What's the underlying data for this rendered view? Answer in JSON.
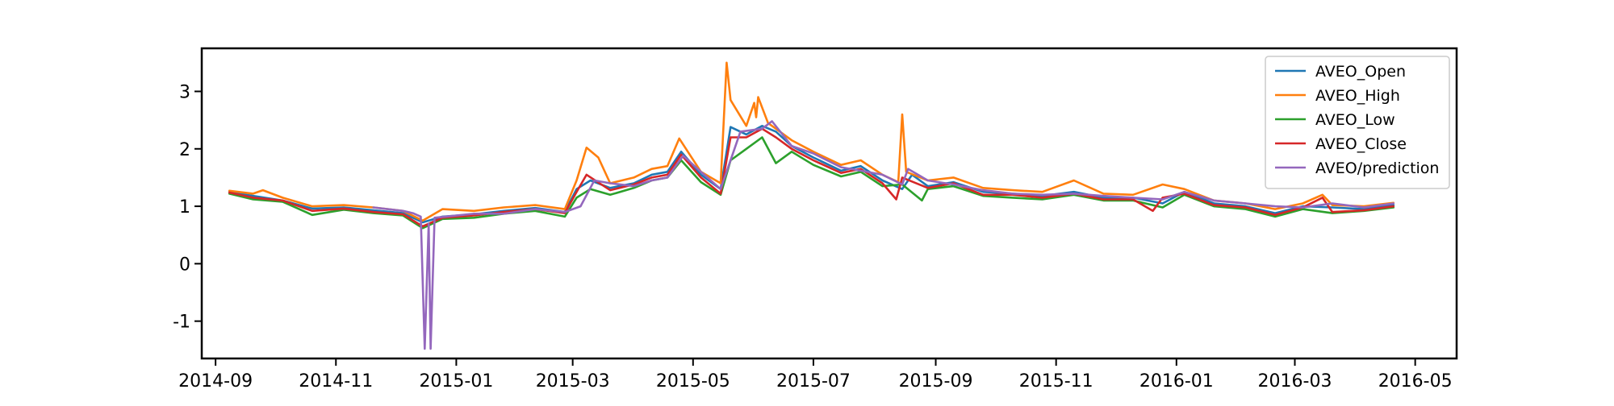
{
  "chart_data": {
    "type": "line",
    "title": "",
    "xlabel": "",
    "ylabel": "",
    "xlim": [
      "2014-08-25",
      "2016-05-22"
    ],
    "ylim": [
      -1.65,
      3.75
    ],
    "x_ticks": [
      "2014-09",
      "2014-11",
      "2015-01",
      "2015-03",
      "2015-05",
      "2015-07",
      "2015-09",
      "2015-11",
      "2016-01",
      "2016-03",
      "2016-05"
    ],
    "y_ticks": [
      -1,
      0,
      1,
      2,
      3
    ],
    "legend_position": "top-right",
    "grid": false,
    "series": [
      {
        "name": "AVEO_Open",
        "color": "#1f77b4",
        "points": [
          [
            "2014-09-08",
            1.25
          ],
          [
            "2014-09-20",
            1.18
          ],
          [
            "2014-10-05",
            1.1
          ],
          [
            "2014-10-20",
            0.96
          ],
          [
            "2014-11-05",
            0.98
          ],
          [
            "2014-11-20",
            0.93
          ],
          [
            "2014-12-05",
            0.88
          ],
          [
            "2014-12-15",
            0.72
          ],
          [
            "2014-12-25",
            0.82
          ],
          [
            "2015-01-10",
            0.86
          ],
          [
            "2015-01-25",
            0.92
          ],
          [
            "2015-02-10",
            0.97
          ],
          [
            "2015-02-25",
            0.9
          ],
          [
            "2015-03-03",
            1.3
          ],
          [
            "2015-03-10",
            1.45
          ],
          [
            "2015-03-20",
            1.32
          ],
          [
            "2015-04-01",
            1.4
          ],
          [
            "2015-04-10",
            1.55
          ],
          [
            "2015-04-18",
            1.6
          ],
          [
            "2015-04-25",
            1.95
          ],
          [
            "2015-05-05",
            1.55
          ],
          [
            "2015-05-15",
            1.3
          ],
          [
            "2015-05-20",
            2.38
          ],
          [
            "2015-05-28",
            2.25
          ],
          [
            "2015-06-05",
            2.4
          ],
          [
            "2015-06-12",
            2.3
          ],
          [
            "2015-06-20",
            2.05
          ],
          [
            "2015-07-01",
            1.85
          ],
          [
            "2015-07-15",
            1.62
          ],
          [
            "2015-07-25",
            1.7
          ],
          [
            "2015-08-05",
            1.45
          ],
          [
            "2015-08-15",
            1.3
          ],
          [
            "2015-08-20",
            1.55
          ],
          [
            "2015-08-28",
            1.35
          ],
          [
            "2015-09-10",
            1.42
          ],
          [
            "2015-09-25",
            1.25
          ],
          [
            "2015-10-10",
            1.22
          ],
          [
            "2015-10-25",
            1.18
          ],
          [
            "2015-11-10",
            1.25
          ],
          [
            "2015-11-25",
            1.15
          ],
          [
            "2015-12-10",
            1.15
          ],
          [
            "2015-12-25",
            1.05
          ],
          [
            "2016-01-05",
            1.25
          ],
          [
            "2016-01-20",
            1.05
          ],
          [
            "2016-02-05",
            1.0
          ],
          [
            "2016-02-20",
            0.88
          ],
          [
            "2016-03-05",
            1.0
          ],
          [
            "2016-03-20",
            0.98
          ],
          [
            "2016-04-05",
            0.95
          ],
          [
            "2016-04-20",
            1.02
          ]
        ]
      },
      {
        "name": "AVEO_High",
        "color": "#ff7f0e",
        "points": [
          [
            "2014-09-08",
            1.27
          ],
          [
            "2014-09-20",
            1.22
          ],
          [
            "2014-09-25",
            1.28
          ],
          [
            "2014-10-05",
            1.15
          ],
          [
            "2014-10-20",
            1.0
          ],
          [
            "2014-11-05",
            1.02
          ],
          [
            "2014-11-20",
            0.98
          ],
          [
            "2014-12-05",
            0.92
          ],
          [
            "2014-12-15",
            0.75
          ],
          [
            "2014-12-25",
            0.95
          ],
          [
            "2015-01-10",
            0.92
          ],
          [
            "2015-01-25",
            0.98
          ],
          [
            "2015-02-10",
            1.02
          ],
          [
            "2015-02-25",
            0.95
          ],
          [
            "2015-03-03",
            1.45
          ],
          [
            "2015-03-08",
            2.02
          ],
          [
            "2015-03-14",
            1.85
          ],
          [
            "2015-03-20",
            1.4
          ],
          [
            "2015-04-01",
            1.5
          ],
          [
            "2015-04-10",
            1.65
          ],
          [
            "2015-04-18",
            1.7
          ],
          [
            "2015-04-24",
            2.18
          ],
          [
            "2015-05-05",
            1.6
          ],
          [
            "2015-05-15",
            1.4
          ],
          [
            "2015-05-18",
            3.5
          ],
          [
            "2015-05-20",
            2.85
          ],
          [
            "2015-05-28",
            2.4
          ],
          [
            "2015-06-01",
            2.8
          ],
          [
            "2015-06-02",
            2.55
          ],
          [
            "2015-06-03",
            2.9
          ],
          [
            "2015-06-08",
            2.45
          ],
          [
            "2015-06-20",
            2.15
          ],
          [
            "2015-07-01",
            1.95
          ],
          [
            "2015-07-15",
            1.72
          ],
          [
            "2015-07-25",
            1.8
          ],
          [
            "2015-08-05",
            1.55
          ],
          [
            "2015-08-13",
            1.42
          ],
          [
            "2015-08-15",
            2.6
          ],
          [
            "2015-08-17",
            1.6
          ],
          [
            "2015-08-28",
            1.45
          ],
          [
            "2015-09-10",
            1.5
          ],
          [
            "2015-09-25",
            1.32
          ],
          [
            "2015-10-10",
            1.28
          ],
          [
            "2015-10-25",
            1.25
          ],
          [
            "2015-11-10",
            1.45
          ],
          [
            "2015-11-25",
            1.22
          ],
          [
            "2015-12-10",
            1.2
          ],
          [
            "2015-12-25",
            1.38
          ],
          [
            "2016-01-05",
            1.3
          ],
          [
            "2016-01-20",
            1.1
          ],
          [
            "2016-02-05",
            1.05
          ],
          [
            "2016-02-20",
            0.95
          ],
          [
            "2016-03-05",
            1.05
          ],
          [
            "2016-03-15",
            1.2
          ],
          [
            "2016-03-20",
            1.02
          ],
          [
            "2016-04-05",
            1.0
          ],
          [
            "2016-04-20",
            1.06
          ]
        ]
      },
      {
        "name": "AVEO_Low",
        "color": "#2ca02c",
        "points": [
          [
            "2014-09-08",
            1.22
          ],
          [
            "2014-09-20",
            1.12
          ],
          [
            "2014-10-05",
            1.08
          ],
          [
            "2014-10-20",
            0.85
          ],
          [
            "2014-11-05",
            0.94
          ],
          [
            "2014-11-20",
            0.88
          ],
          [
            "2014-12-05",
            0.84
          ],
          [
            "2014-12-15",
            0.62
          ],
          [
            "2014-12-25",
            0.78
          ],
          [
            "2015-01-10",
            0.8
          ],
          [
            "2015-01-25",
            0.87
          ],
          [
            "2015-02-10",
            0.92
          ],
          [
            "2015-02-25",
            0.82
          ],
          [
            "2015-03-03",
            1.15
          ],
          [
            "2015-03-10",
            1.3
          ],
          [
            "2015-03-20",
            1.2
          ],
          [
            "2015-04-01",
            1.32
          ],
          [
            "2015-04-10",
            1.45
          ],
          [
            "2015-04-18",
            1.5
          ],
          [
            "2015-04-25",
            1.8
          ],
          [
            "2015-05-05",
            1.42
          ],
          [
            "2015-05-15",
            1.2
          ],
          [
            "2015-05-20",
            1.8
          ],
          [
            "2015-05-28",
            2.0
          ],
          [
            "2015-06-05",
            2.2
          ],
          [
            "2015-06-12",
            1.75
          ],
          [
            "2015-06-20",
            1.95
          ],
          [
            "2015-07-01",
            1.72
          ],
          [
            "2015-07-15",
            1.52
          ],
          [
            "2015-07-25",
            1.6
          ],
          [
            "2015-08-05",
            1.35
          ],
          [
            "2015-08-15",
            1.38
          ],
          [
            "2015-08-25",
            1.1
          ],
          [
            "2015-08-28",
            1.3
          ],
          [
            "2015-09-10",
            1.35
          ],
          [
            "2015-09-25",
            1.18
          ],
          [
            "2015-10-10",
            1.15
          ],
          [
            "2015-10-25",
            1.12
          ],
          [
            "2015-11-10",
            1.2
          ],
          [
            "2015-11-25",
            1.1
          ],
          [
            "2015-12-10",
            1.1
          ],
          [
            "2015-12-25",
            0.98
          ],
          [
            "2016-01-05",
            1.2
          ],
          [
            "2016-01-20",
            1.0
          ],
          [
            "2016-02-05",
            0.95
          ],
          [
            "2016-02-20",
            0.82
          ],
          [
            "2016-03-05",
            0.95
          ],
          [
            "2016-03-20",
            0.88
          ],
          [
            "2016-04-05",
            0.92
          ],
          [
            "2016-04-20",
            0.98
          ]
        ]
      },
      {
        "name": "AVEO_Close",
        "color": "#d62728",
        "points": [
          [
            "2014-09-08",
            1.24
          ],
          [
            "2014-09-20",
            1.15
          ],
          [
            "2014-10-05",
            1.1
          ],
          [
            "2014-10-20",
            0.92
          ],
          [
            "2014-11-05",
            0.96
          ],
          [
            "2014-11-20",
            0.9
          ],
          [
            "2014-12-05",
            0.86
          ],
          [
            "2014-12-15",
            0.65
          ],
          [
            "2014-12-25",
            0.8
          ],
          [
            "2015-01-10",
            0.84
          ],
          [
            "2015-01-25",
            0.9
          ],
          [
            "2015-02-10",
            0.95
          ],
          [
            "2015-02-25",
            0.88
          ],
          [
            "2015-03-03",
            1.25
          ],
          [
            "2015-03-08",
            1.55
          ],
          [
            "2015-03-20",
            1.28
          ],
          [
            "2015-04-01",
            1.38
          ],
          [
            "2015-04-10",
            1.5
          ],
          [
            "2015-04-18",
            1.55
          ],
          [
            "2015-04-25",
            1.9
          ],
          [
            "2015-05-05",
            1.5
          ],
          [
            "2015-05-15",
            1.22
          ],
          [
            "2015-05-20",
            2.2
          ],
          [
            "2015-05-28",
            2.2
          ],
          [
            "2015-06-05",
            2.35
          ],
          [
            "2015-06-12",
            2.2
          ],
          [
            "2015-06-20",
            2.0
          ],
          [
            "2015-07-01",
            1.8
          ],
          [
            "2015-07-15",
            1.58
          ],
          [
            "2015-07-25",
            1.65
          ],
          [
            "2015-08-05",
            1.4
          ],
          [
            "2015-08-12",
            1.12
          ],
          [
            "2015-08-15",
            1.5
          ],
          [
            "2015-08-28",
            1.32
          ],
          [
            "2015-09-10",
            1.4
          ],
          [
            "2015-09-25",
            1.2
          ],
          [
            "2015-10-10",
            1.2
          ],
          [
            "2015-10-25",
            1.15
          ],
          [
            "2015-11-10",
            1.22
          ],
          [
            "2015-11-25",
            1.12
          ],
          [
            "2015-12-10",
            1.12
          ],
          [
            "2015-12-20",
            0.92
          ],
          [
            "2015-12-25",
            1.15
          ],
          [
            "2016-01-05",
            1.22
          ],
          [
            "2016-01-20",
            1.02
          ],
          [
            "2016-02-05",
            0.98
          ],
          [
            "2016-02-20",
            0.85
          ],
          [
            "2016-03-05",
            0.98
          ],
          [
            "2016-03-15",
            1.15
          ],
          [
            "2016-03-20",
            0.9
          ],
          [
            "2016-04-05",
            0.93
          ],
          [
            "2016-04-20",
            1.0
          ]
        ]
      },
      {
        "name": "AVEO/prediction",
        "color": "#9467bd",
        "points": [
          [
            "2014-11-20",
            0.98
          ],
          [
            "2014-12-05",
            0.92
          ],
          [
            "2014-12-10",
            0.88
          ],
          [
            "2014-12-14",
            0.82
          ],
          [
            "2014-12-16",
            -1.48
          ],
          [
            "2014-12-18",
            0.7
          ],
          [
            "2014-12-19",
            -1.48
          ],
          [
            "2014-12-21",
            0.8
          ],
          [
            "2015-01-10",
            0.87
          ],
          [
            "2015-01-25",
            0.87
          ],
          [
            "2015-02-10",
            0.95
          ],
          [
            "2015-02-25",
            0.9
          ],
          [
            "2015-03-05",
            1.0
          ],
          [
            "2015-03-12",
            1.45
          ],
          [
            "2015-03-20",
            1.4
          ],
          [
            "2015-04-01",
            1.35
          ],
          [
            "2015-04-10",
            1.45
          ],
          [
            "2015-04-18",
            1.5
          ],
          [
            "2015-04-26",
            1.88
          ],
          [
            "2015-05-05",
            1.6
          ],
          [
            "2015-05-15",
            1.3
          ],
          [
            "2015-05-25",
            2.3
          ],
          [
            "2015-06-05",
            2.35
          ],
          [
            "2015-06-10",
            2.48
          ],
          [
            "2015-06-20",
            2.05
          ],
          [
            "2015-07-01",
            1.92
          ],
          [
            "2015-07-15",
            1.68
          ],
          [
            "2015-07-25",
            1.62
          ],
          [
            "2015-08-05",
            1.55
          ],
          [
            "2015-08-15",
            1.38
          ],
          [
            "2015-08-18",
            1.65
          ],
          [
            "2015-08-28",
            1.45
          ],
          [
            "2015-09-10",
            1.38
          ],
          [
            "2015-09-25",
            1.28
          ],
          [
            "2015-10-10",
            1.22
          ],
          [
            "2015-10-25",
            1.2
          ],
          [
            "2015-11-10",
            1.22
          ],
          [
            "2015-11-25",
            1.18
          ],
          [
            "2015-12-10",
            1.15
          ],
          [
            "2015-12-25",
            1.12
          ],
          [
            "2016-01-05",
            1.25
          ],
          [
            "2016-01-20",
            1.1
          ],
          [
            "2016-02-05",
            1.05
          ],
          [
            "2016-02-20",
            1.0
          ],
          [
            "2016-03-05",
            0.98
          ],
          [
            "2016-03-20",
            1.05
          ],
          [
            "2016-04-05",
            0.98
          ],
          [
            "2016-04-20",
            1.05
          ]
        ]
      }
    ]
  }
}
